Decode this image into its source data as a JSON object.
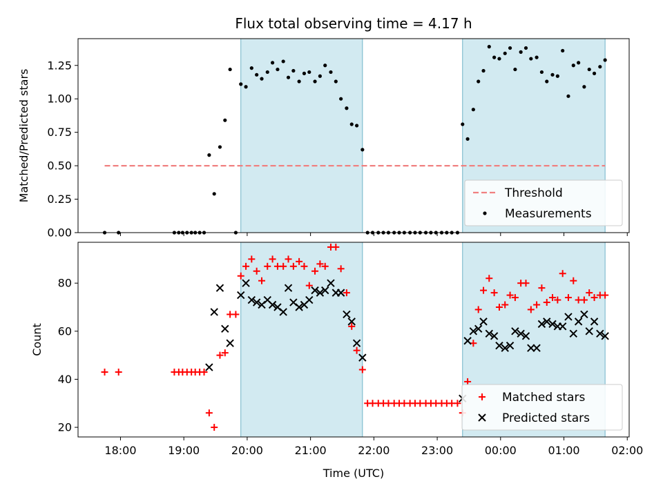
{
  "title": "Flux total observing time = 4.17 h",
  "colors": {
    "threshold": "#f08080",
    "measurement": "#000000",
    "matched": "#ff0000",
    "predicted": "#000000",
    "span_fill": "#add8e6",
    "span_edge": "#6fb3c8"
  },
  "chart_data": [
    {
      "type": "scatter",
      "name": "top-panel",
      "ylabel": "Matched/Predicted stars",
      "xlabel": "",
      "ylim": [
        0,
        1.45
      ],
      "yticks": [
        0.0,
        0.25,
        0.5,
        0.75,
        1.0,
        1.25
      ],
      "ytick_labels": [
        "0.00",
        "0.25",
        "0.50",
        "0.75",
        "1.00",
        "1.25"
      ],
      "xlim_hours": [
        17.33,
        26.03
      ],
      "legend": {
        "placement": "bottom-right",
        "entries": [
          "Threshold",
          "Measurements"
        ]
      },
      "threshold": {
        "name": "Threshold",
        "value": 0.5,
        "x_range_hours": [
          17.75,
          25.65
        ]
      },
      "shaded_spans_hours": [
        [
          19.9,
          21.82
        ],
        [
          23.4,
          25.65
        ]
      ],
      "series": [
        {
          "name": "Measurements",
          "marker": "dot",
          "x_hours": [
            17.75,
            17.97,
            18.85,
            18.92,
            18.98,
            19.05,
            19.12,
            19.18,
            19.25,
            19.32,
            19.4,
            19.48,
            19.57,
            19.65,
            19.73,
            19.82,
            19.9,
            19.98,
            20.07,
            20.15,
            20.23,
            20.32,
            20.4,
            20.48,
            20.57,
            20.65,
            20.73,
            20.82,
            20.9,
            20.98,
            21.07,
            21.15,
            21.23,
            21.32,
            21.4,
            21.48,
            21.57,
            21.65,
            21.73,
            21.82,
            21.9,
            21.98,
            22.07,
            22.15,
            22.23,
            22.32,
            22.4,
            22.48,
            22.57,
            22.65,
            22.73,
            22.82,
            22.9,
            22.98,
            23.07,
            23.15,
            23.23,
            23.32,
            23.4,
            23.48,
            23.57,
            23.65,
            23.73,
            23.82,
            23.9,
            23.98,
            24.07,
            24.15,
            24.23,
            24.32,
            24.4,
            24.48,
            24.57,
            24.65,
            24.73,
            24.82,
            24.9,
            24.98,
            25.07,
            25.15,
            25.23,
            25.32,
            25.4,
            25.48,
            25.57,
            25.65
          ],
          "y": [
            0,
            0,
            0,
            0,
            0,
            0,
            0,
            0,
            0,
            0,
            0.58,
            0.29,
            0.64,
            0.84,
            1.22,
            0,
            1.11,
            1.09,
            1.23,
            1.18,
            1.15,
            1.2,
            1.27,
            1.22,
            1.28,
            1.16,
            1.21,
            1.13,
            1.19,
            1.2,
            1.13,
            1.17,
            1.25,
            1.2,
            1.13,
            1.0,
            0.93,
            0.81,
            0.8,
            0.62,
            0,
            0,
            0,
            0,
            0,
            0,
            0,
            0,
            0,
            0,
            0,
            0,
            0,
            0,
            0,
            0,
            0,
            0,
            0.81,
            0.7,
            0.92,
            1.13,
            1.21,
            1.39,
            1.31,
            1.3,
            1.34,
            1.38,
            1.22,
            1.35,
            1.38,
            1.3,
            1.31,
            1.2,
            1.13,
            1.18,
            1.17,
            1.36,
            1.02,
            1.25,
            1.27,
            1.09,
            1.22,
            1.19,
            1.24,
            1.29
          ]
        }
      ]
    },
    {
      "type": "scatter",
      "name": "bottom-panel",
      "ylabel": "Count",
      "xlabel": "Time (UTC)",
      "ylim": [
        16,
        97
      ],
      "yticks": [
        20,
        40,
        60,
        80
      ],
      "ytick_labels": [
        "20",
        "40",
        "60",
        "80"
      ],
      "xlim_hours": [
        17.33,
        26.03
      ],
      "xticks_hours": [
        18,
        19,
        20,
        21,
        22,
        23,
        24,
        25,
        26
      ],
      "xtick_labels": [
        "18:00",
        "19:00",
        "20:00",
        "21:00",
        "22:00",
        "23:00",
        "00:00",
        "01:00",
        "02:00"
      ],
      "legend": {
        "placement": "bottom-right",
        "entries": [
          "Matched stars",
          "Predicted stars"
        ]
      },
      "shaded_spans_hours": [
        [
          19.9,
          21.82
        ],
        [
          23.4,
          25.65
        ]
      ],
      "series": [
        {
          "name": "Matched stars",
          "marker": "plus",
          "x_hours": [
            17.75,
            17.97,
            18.85,
            18.92,
            18.98,
            19.05,
            19.12,
            19.18,
            19.25,
            19.32,
            19.4,
            19.48,
            19.57,
            19.65,
            19.73,
            19.82,
            19.9,
            19.98,
            20.07,
            20.15,
            20.23,
            20.32,
            20.4,
            20.48,
            20.57,
            20.65,
            20.73,
            20.82,
            20.9,
            20.98,
            21.07,
            21.15,
            21.23,
            21.32,
            21.4,
            21.48,
            21.57,
            21.65,
            21.73,
            21.82,
            21.9,
            21.98,
            22.07,
            22.15,
            22.23,
            22.32,
            22.4,
            22.48,
            22.57,
            22.65,
            22.73,
            22.82,
            22.9,
            22.98,
            23.07,
            23.15,
            23.23,
            23.32,
            23.4,
            23.48,
            23.57,
            23.65,
            23.73,
            23.82,
            23.9,
            23.98,
            24.07,
            24.15,
            24.23,
            24.32,
            24.4,
            24.48,
            24.57,
            24.65,
            24.73,
            24.82,
            24.9,
            24.98,
            25.07,
            25.15,
            25.23,
            25.32,
            25.4,
            25.48,
            25.57,
            25.65
          ],
          "y": [
            43,
            43,
            43,
            43,
            43,
            43,
            43,
            43,
            43,
            43,
            26,
            20,
            50,
            51,
            67,
            67,
            83,
            87,
            90,
            85,
            81,
            87,
            90,
            87,
            87,
            90,
            87,
            89,
            87,
            79,
            85,
            88,
            87,
            95,
            95,
            86,
            76,
            62,
            52,
            44,
            30,
            30,
            30,
            30,
            30,
            30,
            30,
            30,
            30,
            30,
            30,
            30,
            30,
            30,
            30,
            30,
            30,
            30,
            26,
            39,
            55,
            69,
            77,
            82,
            76,
            70,
            71,
            75,
            74,
            80,
            80,
            69,
            71,
            78,
            72,
            74,
            73,
            84,
            74,
            81,
            73,
            73,
            76,
            74,
            75,
            75
          ]
        },
        {
          "name": "Predicted stars",
          "marker": "x",
          "x_hours": [
            19.4,
            19.48,
            19.57,
            19.65,
            19.73,
            19.9,
            19.98,
            20.07,
            20.15,
            20.23,
            20.32,
            20.4,
            20.48,
            20.57,
            20.65,
            20.73,
            20.82,
            20.9,
            20.98,
            21.07,
            21.15,
            21.23,
            21.32,
            21.4,
            21.48,
            21.57,
            21.65,
            21.73,
            21.82,
            23.4,
            23.48,
            23.57,
            23.65,
            23.73,
            23.82,
            23.9,
            23.98,
            24.07,
            24.15,
            24.23,
            24.32,
            24.4,
            24.48,
            24.57,
            24.65,
            24.73,
            24.82,
            24.9,
            24.98,
            25.07,
            25.15,
            25.23,
            25.32,
            25.4,
            25.48,
            25.57,
            25.65
          ],
          "y": [
            45,
            68,
            78,
            61,
            55,
            75,
            80,
            73,
            72,
            71,
            73,
            71,
            70,
            68,
            78,
            72,
            70,
            71,
            73,
            77,
            76,
            77,
            80,
            76,
            76,
            67,
            64,
            55,
            49,
            32,
            56,
            60,
            61,
            64,
            59,
            58,
            54,
            53,
            54,
            60,
            59,
            58,
            53,
            53,
            63,
            64,
            63,
            62,
            62,
            66,
            59,
            64,
            67,
            60,
            64,
            59,
            58
          ]
        }
      ]
    }
  ]
}
